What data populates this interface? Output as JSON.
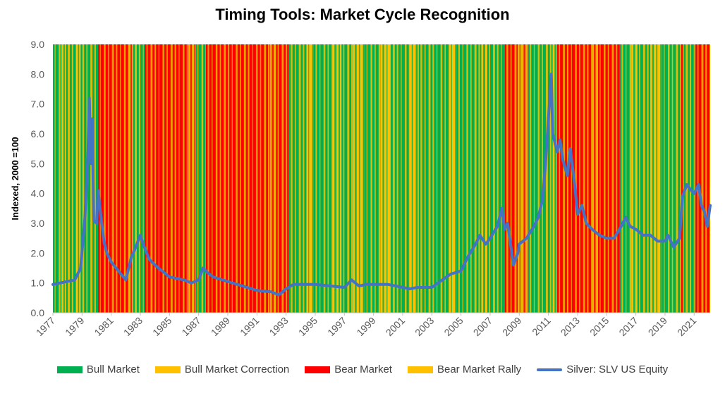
{
  "chart_data": {
    "type": "line",
    "title": "Timing Tools: Market Cycle Recognition",
    "xlabel": "",
    "ylabel": "Indexed, 2000 =100",
    "ylim": [
      0,
      9
    ],
    "yticks": [
      "0.0",
      "1.0",
      "2.0",
      "3.0",
      "4.0",
      "5.0",
      "6.0",
      "7.0",
      "8.0",
      "9.0"
    ],
    "xlim": [
      1977.0,
      2022.1
    ],
    "xticks": [
      "1977",
      "1979",
      "1981",
      "1983",
      "1985",
      "1987",
      "1989",
      "1991",
      "1993",
      "1995",
      "1997",
      "1999",
      "2001",
      "2003",
      "2005",
      "2007",
      "2009",
      "2011",
      "2013",
      "2015",
      "2017",
      "2019",
      "2021"
    ],
    "regime_colors": {
      "bull": "#00b050",
      "correction": "#ffc000",
      "bear": "#ff0000",
      "rally": "#e6b800"
    },
    "regimes": [
      {
        "start": 1977.0,
        "end": 1977.6,
        "state": "bull"
      },
      {
        "start": 1977.6,
        "end": 1977.9,
        "state": "correction"
      },
      {
        "start": 1977.9,
        "end": 1978.6,
        "state": "bull"
      },
      {
        "start": 1978.6,
        "end": 1978.9,
        "state": "correction"
      },
      {
        "start": 1978.9,
        "end": 1980.1,
        "state": "bull"
      },
      {
        "start": 1980.1,
        "end": 1982.2,
        "state": "bear"
      },
      {
        "start": 1982.2,
        "end": 1982.5,
        "state": "rally"
      },
      {
        "start": 1982.5,
        "end": 1983.3,
        "state": "bull"
      },
      {
        "start": 1983.3,
        "end": 1986.3,
        "state": "bear"
      },
      {
        "start": 1986.3,
        "end": 1986.8,
        "state": "rally"
      },
      {
        "start": 1986.8,
        "end": 1987.5,
        "state": "bull"
      },
      {
        "start": 1987.5,
        "end": 1991.9,
        "state": "bear"
      },
      {
        "start": 1991.9,
        "end": 1992.3,
        "state": "rally"
      },
      {
        "start": 1992.3,
        "end": 1993.2,
        "state": "bear"
      },
      {
        "start": 1993.2,
        "end": 1994.4,
        "state": "bull"
      },
      {
        "start": 1994.4,
        "end": 1994.9,
        "state": "correction"
      },
      {
        "start": 1994.9,
        "end": 1996.2,
        "state": "bull"
      },
      {
        "start": 1996.2,
        "end": 1996.8,
        "state": "correction"
      },
      {
        "start": 1996.8,
        "end": 1997.6,
        "state": "bull"
      },
      {
        "start": 1997.6,
        "end": 1998.4,
        "state": "correction"
      },
      {
        "start": 1998.4,
        "end": 1999.5,
        "state": "bull"
      },
      {
        "start": 1999.5,
        "end": 2000.2,
        "state": "correction"
      },
      {
        "start": 2000.2,
        "end": 2001.5,
        "state": "bull"
      },
      {
        "start": 2001.5,
        "end": 2002.1,
        "state": "correction"
      },
      {
        "start": 2002.1,
        "end": 2004.2,
        "state": "bull"
      },
      {
        "start": 2004.2,
        "end": 2004.7,
        "state": "correction"
      },
      {
        "start": 2004.7,
        "end": 2006.4,
        "state": "bull"
      },
      {
        "start": 2006.4,
        "end": 2006.8,
        "state": "correction"
      },
      {
        "start": 2006.8,
        "end": 2008.0,
        "state": "bull"
      },
      {
        "start": 2008.0,
        "end": 2008.9,
        "state": "bear"
      },
      {
        "start": 2008.9,
        "end": 2009.6,
        "state": "rally"
      },
      {
        "start": 2009.6,
        "end": 2011.3,
        "state": "bull"
      },
      {
        "start": 2011.3,
        "end": 2011.6,
        "state": "correction"
      },
      {
        "start": 2011.6,
        "end": 2014.0,
        "state": "bear"
      },
      {
        "start": 2014.0,
        "end": 2014.4,
        "state": "rally"
      },
      {
        "start": 2014.4,
        "end": 2015.9,
        "state": "bear"
      },
      {
        "start": 2015.9,
        "end": 2016.7,
        "state": "bull"
      },
      {
        "start": 2016.7,
        "end": 2017.1,
        "state": "correction"
      },
      {
        "start": 2017.1,
        "end": 2018.0,
        "state": "bull"
      },
      {
        "start": 2018.0,
        "end": 2018.8,
        "state": "correction"
      },
      {
        "start": 2018.8,
        "end": 2020.1,
        "state": "bull"
      },
      {
        "start": 2020.1,
        "end": 2020.3,
        "state": "bear"
      },
      {
        "start": 2020.3,
        "end": 2021.1,
        "state": "bull"
      },
      {
        "start": 2021.1,
        "end": 2022.1,
        "state": "bear"
      }
    ],
    "series": [
      {
        "name": "Silver: SLV US Equity",
        "color": "#4472c4",
        "x": [
          1977.0,
          1977.5,
          1978.0,
          1978.5,
          1978.9,
          1979.2,
          1979.4,
          1979.5,
          1979.6,
          1979.7,
          1979.8,
          1980.0,
          1980.1,
          1980.3,
          1980.5,
          1980.7,
          1981.0,
          1981.5,
          1982.0,
          1982.4,
          1982.6,
          1983.0,
          1983.2,
          1983.6,
          1984.0,
          1985.0,
          1986.0,
          1986.5,
          1987.0,
          1987.3,
          1987.6,
          1988.0,
          1989.0,
          1990.0,
          1991.0,
          1992.0,
          1992.5,
          1993.0,
          1993.5,
          1994.0,
          1995.0,
          1996.0,
          1997.0,
          1997.5,
          1998.0,
          1998.5,
          1999.0,
          2000.0,
          2001.0,
          2001.5,
          2002.0,
          2002.5,
          2003.0,
          2004.0,
          2004.3,
          2005.0,
          2005.5,
          2006.0,
          2006.3,
          2006.7,
          2007.0,
          2007.5,
          2007.8,
          2008.0,
          2008.2,
          2008.6,
          2008.9,
          2009.0,
          2009.5,
          2010.0,
          2010.3,
          2010.6,
          2010.8,
          2011.0,
          2011.2,
          2011.3,
          2011.6,
          2011.8,
          2012.0,
          2012.3,
          2012.5,
          2012.8,
          2013.0,
          2013.3,
          2013.6,
          2014.0,
          2014.5,
          2015.0,
          2015.5,
          2016.0,
          2016.3,
          2016.6,
          2017.0,
          2017.5,
          2018.0,
          2018.5,
          2019.0,
          2019.2,
          2019.6,
          2020.0,
          2020.2,
          2020.5,
          2020.8,
          2021.0,
          2021.3,
          2021.5,
          2021.7,
          2021.9,
          2022.1
        ],
        "values": [
          0.95,
          1.0,
          1.05,
          1.1,
          1.5,
          3.2,
          5.2,
          7.2,
          5.0,
          6.5,
          3.1,
          3.0,
          4.1,
          3.2,
          2.4,
          2.0,
          1.7,
          1.4,
          1.1,
          1.9,
          2.1,
          2.6,
          2.3,
          1.8,
          1.6,
          1.2,
          1.1,
          1.0,
          1.1,
          1.5,
          1.35,
          1.2,
          1.05,
          0.9,
          0.75,
          0.7,
          0.6,
          0.8,
          0.95,
          0.95,
          0.95,
          0.9,
          0.85,
          1.1,
          0.9,
          0.95,
          0.95,
          0.95,
          0.85,
          0.8,
          0.85,
          0.85,
          0.85,
          1.2,
          1.3,
          1.4,
          1.9,
          2.3,
          2.6,
          2.3,
          2.5,
          2.9,
          3.5,
          2.8,
          3.0,
          1.6,
          2.0,
          2.3,
          2.5,
          2.9,
          3.2,
          3.8,
          5.0,
          6.5,
          8.0,
          6.0,
          5.4,
          5.8,
          5.1,
          4.6,
          5.5,
          4.3,
          3.3,
          3.6,
          3.0,
          2.8,
          2.6,
          2.5,
          2.5,
          2.9,
          3.2,
          2.9,
          2.8,
          2.6,
          2.6,
          2.4,
          2.4,
          2.6,
          2.2,
          2.5,
          3.9,
          4.3,
          4.1,
          4.0,
          4.3,
          3.6,
          3.4,
          2.9,
          3.6
        ]
      }
    ],
    "legend": [
      {
        "label": "Bull Market",
        "kind": "swatch",
        "color": "#00b050"
      },
      {
        "label": "Bull Market Correction",
        "kind": "swatch",
        "color": "#ffc000"
      },
      {
        "label": "Bear Market",
        "kind": "swatch",
        "color": "#ff0000"
      },
      {
        "label": "Bear Market Rally",
        "kind": "swatch",
        "color": "#ffc000"
      },
      {
        "label": "Silver: SLV US Equity",
        "kind": "line",
        "color": "#4472c4"
      }
    ],
    "legend_position": "bottom"
  }
}
